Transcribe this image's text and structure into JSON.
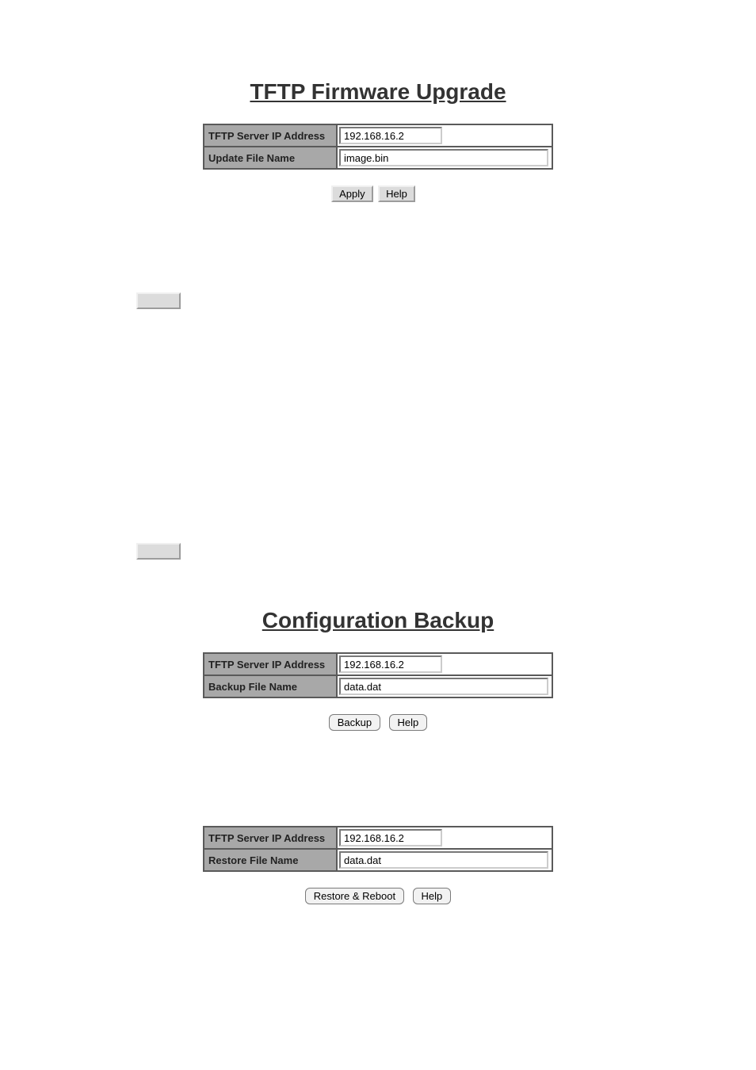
{
  "firmware": {
    "title": "TFTP Firmware Upgrade",
    "rows": [
      {
        "label": "TFTP Server IP Address",
        "value": "192.168.16.2",
        "width": "short"
      },
      {
        "label": "Update File Name",
        "value": "image.bin",
        "width": "long"
      }
    ],
    "buttons": {
      "apply": "Apply",
      "help": "Help"
    }
  },
  "firmware_bullets": [
    {
      "text": ""
    },
    {
      "text": ""
    },
    {
      "text": "",
      "inline_button": true
    }
  ],
  "backup": {
    "title": "Configuration Backup",
    "backup_rows": [
      {
        "label": "TFTP Server IP Address",
        "value": "192.168.16.2",
        "width": "short"
      },
      {
        "label": "Backup File Name",
        "value": "data.dat",
        "width": "long"
      }
    ],
    "backup_buttons": {
      "backup": "Backup",
      "help": "Help"
    },
    "restore_rows": [
      {
        "label": "TFTP Server IP Address",
        "value": "192.168.16.2",
        "width": "short"
      },
      {
        "label": "Restore File Name",
        "value": "data.dat",
        "width": "long"
      }
    ],
    "restore_buttons": {
      "restore": "Restore & Reboot",
      "help": "Help"
    }
  },
  "backup_bullets": [
    {
      "text": ""
    },
    {
      "text": ""
    },
    {
      "text": ""
    },
    {
      "text": "",
      "inline_button": true
    }
  ],
  "colors": {
    "label_bg": "#a8a8a8",
    "border": "#5a5a5a",
    "btn_classic_bg": "#dcdcdc",
    "btn_pill_bg": "#f2f2f2"
  }
}
